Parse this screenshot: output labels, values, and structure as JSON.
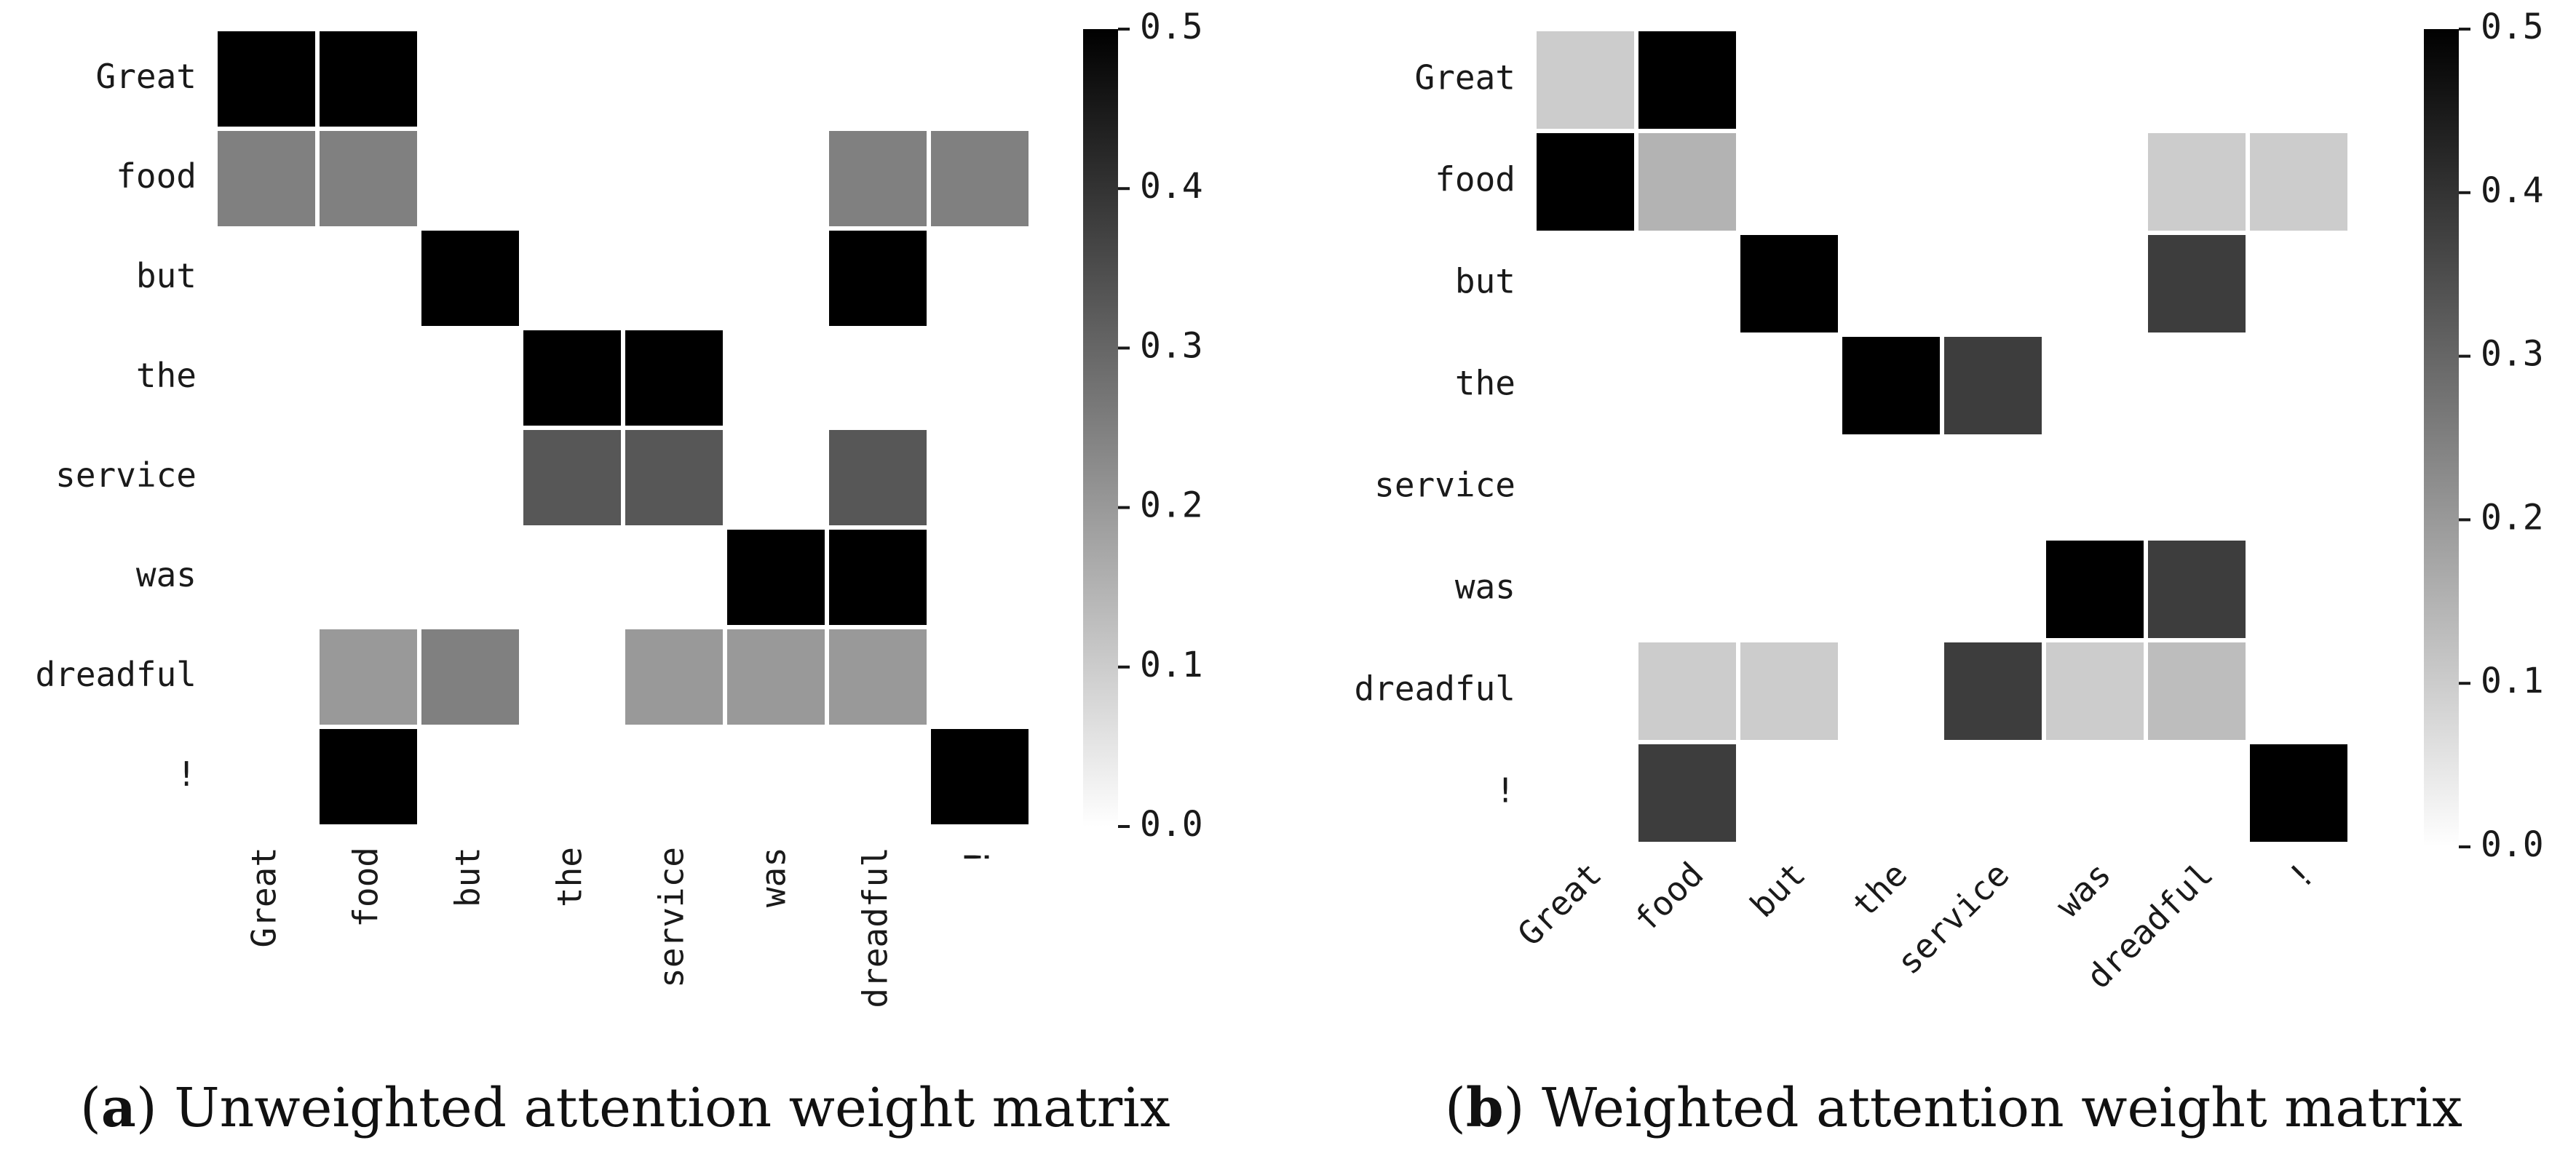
{
  "chart_data": [
    {
      "type": "heatmap",
      "panel": "a",
      "caption_letter": "a",
      "caption_text": "Unweighted attention weight matrix",
      "rows": [
        "Great",
        "food",
        "but",
        "the",
        "service",
        "was",
        "dreadful",
        "!"
      ],
      "cols": [
        "Great",
        "food",
        "but",
        "the",
        "service",
        "was",
        "dreadful",
        "!"
      ],
      "values": [
        [
          0.5,
          0.5,
          null,
          null,
          null,
          null,
          null,
          null
        ],
        [
          0.25,
          0.25,
          null,
          null,
          null,
          null,
          0.25,
          0.25
        ],
        [
          null,
          null,
          0.5,
          null,
          null,
          null,
          0.5,
          null
        ],
        [
          null,
          null,
          null,
          0.5,
          0.5,
          null,
          null,
          null
        ],
        [
          null,
          null,
          null,
          0.33,
          0.33,
          null,
          0.33,
          null
        ],
        [
          null,
          null,
          null,
          null,
          null,
          0.5,
          0.5,
          null
        ],
        [
          null,
          0.2,
          0.25,
          null,
          0.2,
          0.2,
          0.2,
          null
        ],
        [
          null,
          0.5,
          null,
          null,
          null,
          null,
          null,
          0.5
        ]
      ],
      "xtick_rotation": "vertical",
      "colorbar": {
        "min": 0.0,
        "max": 0.5,
        "ticks": [
          "0.0",
          "0.1",
          "0.2",
          "0.3",
          "0.4",
          "0.5"
        ],
        "colormap": "white-to-black"
      }
    },
    {
      "type": "heatmap",
      "panel": "b",
      "caption_letter": "b",
      "caption_text": "Weighted attention weight matrix",
      "rows": [
        "Great",
        "food",
        "but",
        "the",
        "service",
        "was",
        "dreadful",
        "!"
      ],
      "cols": [
        "Great",
        "food",
        "but",
        "the",
        "service",
        "was",
        "dreadful",
        "!"
      ],
      "values": [
        [
          0.1,
          0.5,
          null,
          null,
          null,
          null,
          null,
          null
        ],
        [
          0.5,
          0.15,
          null,
          null,
          null,
          null,
          0.1,
          0.1
        ],
        [
          null,
          null,
          0.5,
          null,
          null,
          null,
          0.38,
          null
        ],
        [
          null,
          null,
          null,
          0.5,
          0.38,
          null,
          null,
          null
        ],
        [
          null,
          null,
          null,
          null,
          null,
          null,
          null,
          null
        ],
        [
          null,
          null,
          null,
          null,
          null,
          0.5,
          0.38,
          null
        ],
        [
          null,
          0.1,
          0.1,
          null,
          0.38,
          0.1,
          0.13,
          null
        ],
        [
          null,
          0.38,
          null,
          null,
          null,
          null,
          null,
          0.5
        ]
      ],
      "xtick_rotation": "diagonal",
      "colorbar": {
        "min": 0.0,
        "max": 0.5,
        "ticks": [
          "0.0",
          "0.1",
          "0.2",
          "0.3",
          "0.4",
          "0.5"
        ],
        "colormap": "white-to-black"
      }
    }
  ]
}
